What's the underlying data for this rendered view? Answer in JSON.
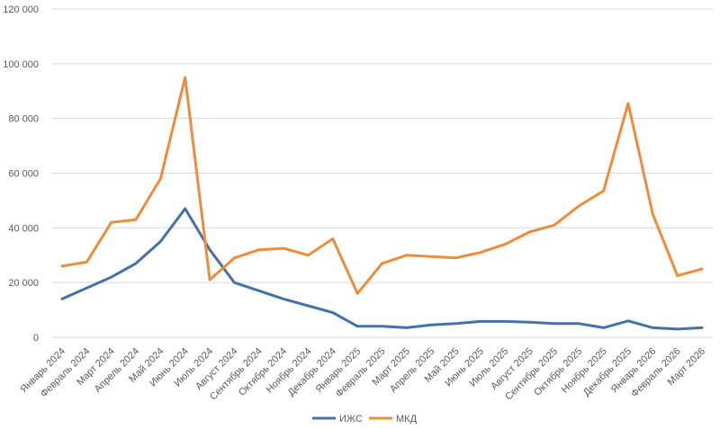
{
  "chart_data": {
    "type": "line",
    "categories": [
      "Январь 2024",
      "Февраль 2024",
      "Март 2024",
      "Апрель 2024",
      "Май 2024",
      "Июнь 2024",
      "Июль 2024",
      "Август 2024",
      "Сентябрь 2024",
      "Октябрь 2024",
      "Ноябрь 2024",
      "Декабрь 2024",
      "Январь 2025",
      "Февраль 2025",
      "Март 2025",
      "Апрель 2025",
      "Май 2025",
      "Июнь 2025",
      "Июль 2025",
      "Август 2025",
      "Сентябрь 2025",
      "Октябрь 2025",
      "Ноябрь 2025",
      "Декабрь 2025",
      "Январь 2026",
      "Февраль 2026",
      "Март 2026"
    ],
    "series": [
      {
        "name": "ИЖС",
        "color": "#4472a8",
        "values": [
          14000,
          18000,
          22000,
          27000,
          35000,
          47000,
          32000,
          20000,
          17000,
          14000,
          11500,
          9000,
          4000,
          4000,
          3500,
          4500,
          5000,
          5800,
          5800,
          5500,
          5000,
          5000,
          3500,
          6000,
          3500,
          3000,
          3500
        ]
      },
      {
        "name": "МКД",
        "color": "#ed8c3b",
        "values": [
          26000,
          27500,
          42000,
          43000,
          58000,
          95000,
          21000,
          29000,
          32000,
          32500,
          30000,
          36000,
          16000,
          27000,
          30000,
          29500,
          29000,
          31000,
          34000,
          38500,
          41000,
          48000,
          53500,
          85500,
          45000,
          22500,
          25000
        ]
      }
    ],
    "ylim": [
      0,
      120000
    ],
    "yticks": [
      0,
      20000,
      40000,
      60000,
      80000,
      100000,
      120000
    ],
    "ytick_labels": [
      "0",
      "20 000",
      "40 000",
      "60 000",
      "80 000",
      "100 000",
      "120 000"
    ],
    "grid": true,
    "legend": "bottom",
    "title": "",
    "xlabel": "",
    "ylabel": ""
  }
}
